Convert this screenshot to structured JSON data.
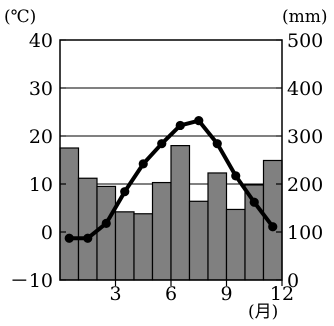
{
  "chart_data": {
    "type": "bar+line",
    "title": "",
    "left_axis": {
      "unit_label": "(℃)",
      "ticks": [
        "40",
        "30",
        "20",
        "10",
        "0",
        "－10"
      ],
      "range": [
        -10,
        40
      ]
    },
    "right_axis": {
      "unit_label": "(mm)",
      "ticks": [
        "500",
        "400",
        "300",
        "200",
        "100",
        "0"
      ],
      "range": [
        0,
        500
      ]
    },
    "x_axis": {
      "unit_label": "(月)",
      "ticks": [
        "3",
        "6",
        "9",
        "12"
      ],
      "tick_months": [
        3,
        6,
        9,
        12
      ]
    },
    "months": [
      1,
      2,
      3,
      4,
      5,
      6,
      7,
      8,
      9,
      10,
      11,
      12
    ],
    "series": [
      {
        "kind": "bar",
        "axis": "right",
        "values": [
          275,
          212,
          195,
          142,
          138,
          203,
          280,
          164,
          223,
          147,
          198,
          249
        ],
        "color": "#808080"
      },
      {
        "kind": "line",
        "axis": "left",
        "values": [
          -1.3,
          -1.3,
          1.8,
          8.4,
          14.2,
          18.4,
          22.2,
          23.2,
          18.4,
          11.7,
          6.2,
          1.1
        ],
        "color": "#000000"
      }
    ],
    "gridlines": {
      "horizontal": true,
      "values": [
        30,
        20,
        10
      ]
    },
    "legend": "none"
  }
}
